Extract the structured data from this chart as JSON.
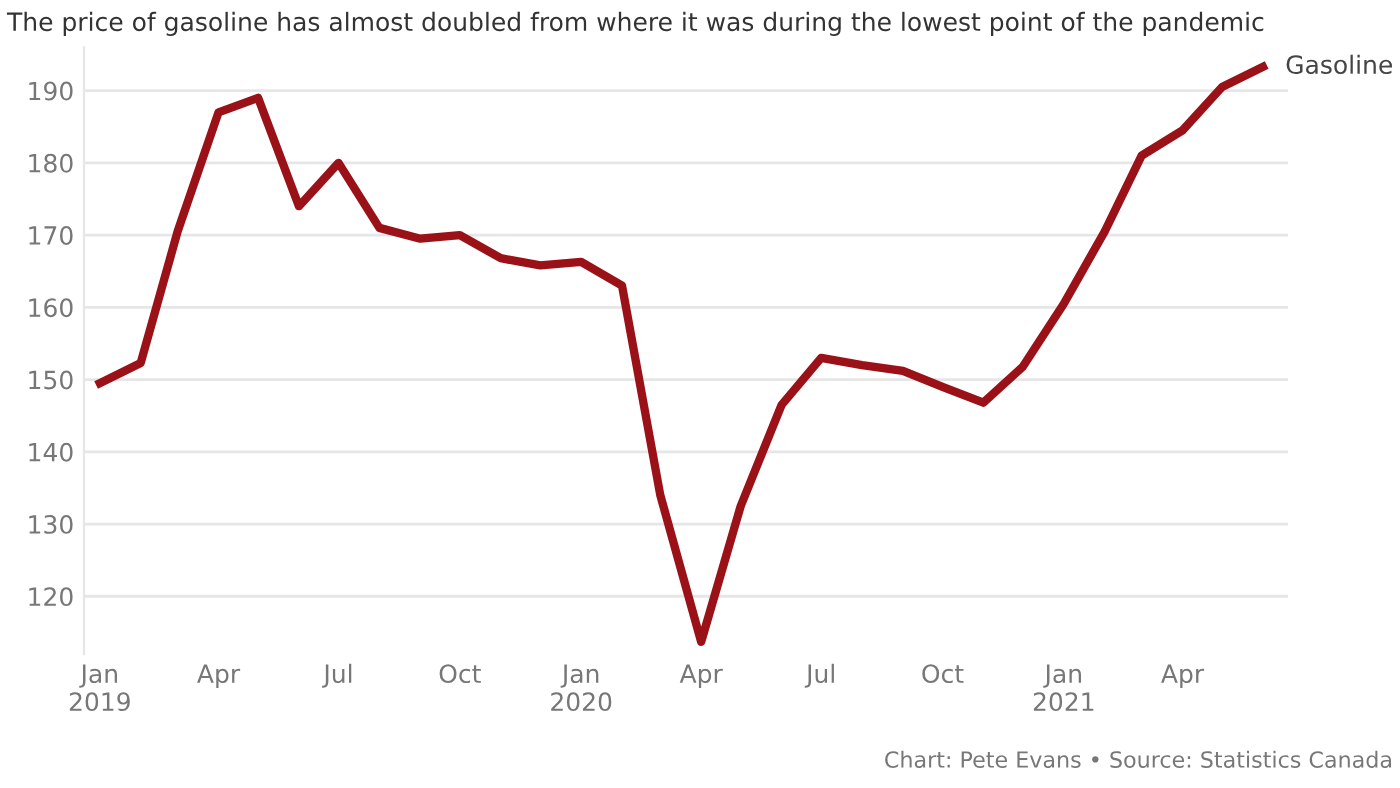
{
  "chart_data": {
    "type": "line",
    "title": "The price of gasoline has almost doubled from where it was during the lowest point of the pandemic",
    "x": [
      "2019-01",
      "2019-02",
      "2019-03",
      "2019-04",
      "2019-05",
      "2019-06",
      "2019-07",
      "2019-08",
      "2019-09",
      "2019-10",
      "2019-11",
      "2019-12",
      "2020-01",
      "2020-02",
      "2020-03",
      "2020-04",
      "2020-05",
      "2020-06",
      "2020-07",
      "2020-08",
      "2020-09",
      "2020-10",
      "2020-11",
      "2020-12",
      "2021-01",
      "2021-02",
      "2021-03",
      "2021-04",
      "2021-05",
      "2021-06"
    ],
    "series": [
      {
        "name": "Gasoline",
        "color": "#9b1118",
        "values": [
          149.5,
          152.3,
          170.5,
          187,
          189,
          174,
          180,
          171,
          169.5,
          170,
          166.8,
          165.8,
          166.3,
          163,
          134,
          113.7,
          132.5,
          146.5,
          153,
          152,
          151.2,
          149,
          146.8,
          151.8,
          160.5,
          170.5,
          181,
          184.5,
          190.5,
          193.3
        ]
      }
    ],
    "xlim": [
      "2018-12-20",
      "2021-06-20"
    ],
    "ylim": [
      112,
      196
    ],
    "yticks": [
      120,
      130,
      140,
      150,
      160,
      170,
      180,
      190
    ],
    "xticks": [
      {
        "value": "2019-01",
        "label": "Jan\n2019"
      },
      {
        "value": "2019-04",
        "label": "Apr"
      },
      {
        "value": "2019-07",
        "label": "Jul"
      },
      {
        "value": "2019-10",
        "label": "Oct"
      },
      {
        "value": "2020-01",
        "label": "Jan\n2020"
      },
      {
        "value": "2020-04",
        "label": "Apr"
      },
      {
        "value": "2020-07",
        "label": "Jul"
      },
      {
        "value": "2020-10",
        "label": "Oct"
      },
      {
        "value": "2021-01",
        "label": "Jan\n2021"
      },
      {
        "value": "2021-04",
        "label": "Apr"
      }
    ],
    "grid": "y",
    "legend": false,
    "marker": "none",
    "line_style": "solid",
    "annotations": [
      "Chart: Pete Evans • Source: Statistics Canada"
    ]
  }
}
